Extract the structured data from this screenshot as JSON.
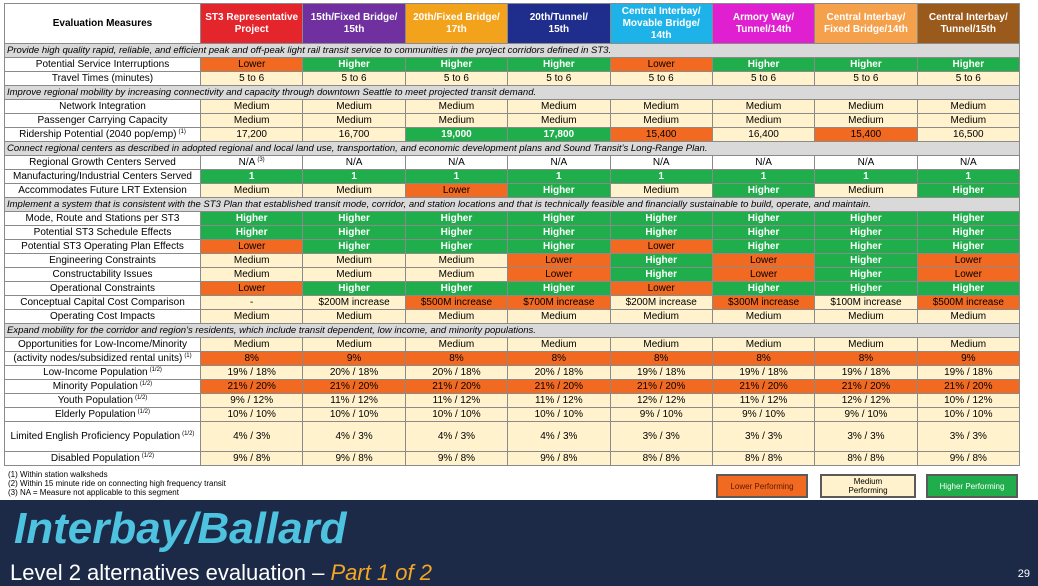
{
  "table": {
    "columns": [
      {
        "lines": [
          "Evaluation Measures"
        ],
        "color": "#ffffff"
      },
      {
        "lines": [
          "ST3 Representative",
          "Project"
        ],
        "color": "#e4262c"
      },
      {
        "lines": [
          "15th/Fixed Bridge/",
          "15th"
        ],
        "color": "#7030a0"
      },
      {
        "lines": [
          "20th/Fixed Bridge/",
          "17th"
        ],
        "color": "#f2a31b"
      },
      {
        "lines": [
          "20th/Tunnel/",
          "15th"
        ],
        "color": "#1f2d8c"
      },
      {
        "lines": [
          "Central Interbay/",
          "Movable Bridge/",
          "14th"
        ],
        "color": "#1eb3e8"
      },
      {
        "lines": [
          "Armory Way/",
          "Tunnel/14th"
        ],
        "color": "#e020d0"
      },
      {
        "lines": [
          "Central Interbay/",
          "Fixed Bridge/14th"
        ],
        "color": "#f5a04a"
      },
      {
        "lines": [
          "Central Interbay/",
          "Tunnel/15th"
        ],
        "color": "#9a5a1c"
      }
    ],
    "rows": [
      {
        "section": "Provide high quality rapid, reliable, and efficient peak and off-peak light rail transit service to communities in the project corridors defined in ST3."
      },
      {
        "label": "Potential Service Interruptions",
        "cells": [
          "Lower",
          "Higher",
          "Higher",
          "Higher",
          "Lower",
          "Higher",
          "Higher",
          "Higher"
        ],
        "levels": [
          0,
          2,
          2,
          2,
          0,
          2,
          2,
          2
        ]
      },
      {
        "label": "Travel Times (minutes)",
        "cells": [
          "5 to 6",
          "5 to 6",
          "5 to 6",
          "5 to 6",
          "5 to 6",
          "5 to 6",
          "5 to 6",
          "5 to 6"
        ],
        "levels": [
          1,
          1,
          1,
          1,
          1,
          1,
          1,
          1
        ]
      },
      {
        "section": "Improve regional mobility by increasing connectivity and capacity through downtown Seattle to meet projected transit demand."
      },
      {
        "label": "Network Integration",
        "cells": [
          "Medium",
          "Medium",
          "Medium",
          "Medium",
          "Medium",
          "Medium",
          "Medium",
          "Medium"
        ],
        "levels": [
          1,
          1,
          1,
          1,
          1,
          1,
          1,
          1
        ]
      },
      {
        "label": "Passenger Carrying Capacity",
        "cells": [
          "Medium",
          "Medium",
          "Medium",
          "Medium",
          "Medium",
          "Medium",
          "Medium",
          "Medium"
        ],
        "levels": [
          1,
          1,
          1,
          1,
          1,
          1,
          1,
          1
        ]
      },
      {
        "label": "Ridership Potential (2040 pop/emp)",
        "note": "(1)",
        "cells": [
          "17,200",
          "16,700",
          "19,000",
          "17,800",
          "15,400",
          "16,400",
          "15,400",
          "16,500"
        ],
        "levels": [
          1,
          1,
          2,
          2,
          0,
          1,
          0,
          1
        ]
      },
      {
        "section": "Connect regional centers as described in adopted regional and local land use, transportation, and economic development plans and Sound Transit’s Long-Range Plan."
      },
      {
        "label": "Regional Growth Centers Served",
        "cells": [
          {
            "text": "N/A",
            "note": "(3)"
          },
          "N/A",
          "N/A",
          "N/A",
          "N/A",
          "N/A",
          "N/A",
          "N/A"
        ],
        "levels": [
          null,
          null,
          null,
          null,
          null,
          null,
          null,
          null
        ]
      },
      {
        "label": "Manufacturing/Industrial Centers Served",
        "cells": [
          "1",
          "1",
          "1",
          "1",
          "1",
          "1",
          "1",
          "1"
        ],
        "levels": [
          2,
          2,
          2,
          2,
          2,
          2,
          2,
          2
        ]
      },
      {
        "label": "Accommodates Future LRT Extension",
        "cells": [
          "Medium",
          "Medium",
          "Lower",
          "Higher",
          "Medium",
          "Higher",
          "Medium",
          "Higher"
        ],
        "levels": [
          1,
          1,
          0,
          2,
          1,
          2,
          1,
          2
        ]
      },
      {
        "section": "Implement a system that is consistent with the ST3 Plan that established transit mode, corridor, and station locations and that is technically feasible and financially sustainable to build, operate, and maintain."
      },
      {
        "label": "Mode, Route and Stations per ST3",
        "cells": [
          "Higher",
          "Higher",
          "Higher",
          "Higher",
          "Higher",
          "Higher",
          "Higher",
          "Higher"
        ],
        "levels": [
          2,
          2,
          2,
          2,
          2,
          2,
          2,
          2
        ]
      },
      {
        "label": "Potential ST3 Schedule Effects",
        "cells": [
          "Higher",
          "Higher",
          "Higher",
          "Higher",
          "Higher",
          "Higher",
          "Higher",
          "Higher"
        ],
        "levels": [
          2,
          2,
          2,
          2,
          2,
          2,
          2,
          2
        ]
      },
      {
        "label": "Potential ST3 Operating Plan Effects",
        "cells": [
          "Lower",
          "Higher",
          "Higher",
          "Higher",
          "Lower",
          "Higher",
          "Higher",
          "Higher"
        ],
        "levels": [
          0,
          2,
          2,
          2,
          0,
          2,
          2,
          2
        ]
      },
      {
        "label": "Engineering Constraints",
        "cells": [
          "Medium",
          "Medium",
          "Medium",
          "Lower",
          "Higher",
          "Lower",
          "Higher",
          "Lower"
        ],
        "levels": [
          1,
          1,
          1,
          0,
          2,
          0,
          2,
          0
        ]
      },
      {
        "label": "Constructability Issues",
        "cells": [
          "Medium",
          "Medium",
          "Medium",
          "Lower",
          "Higher",
          "Lower",
          "Higher",
          "Lower"
        ],
        "levels": [
          1,
          1,
          1,
          0,
          2,
          0,
          2,
          0
        ]
      },
      {
        "label": "Operational Constraints",
        "cells": [
          "Lower",
          "Higher",
          "Higher",
          "Higher",
          "Lower",
          "Higher",
          "Higher",
          "Higher"
        ],
        "levels": [
          0,
          2,
          2,
          2,
          0,
          2,
          2,
          2
        ]
      },
      {
        "label": "Conceptual Capital Cost Comparison",
        "cells": [
          "-",
          "$200M increase",
          "$500M increase",
          "$700M increase",
          "$200M increase",
          "$300M increase",
          "$100M increase",
          "$500M increase"
        ],
        "levels": [
          1,
          1,
          0,
          0,
          1,
          0,
          1,
          0
        ]
      },
      {
        "label": "Operating Cost Impacts",
        "cells": [
          "Medium",
          "Medium",
          "Medium",
          "Medium",
          "Medium",
          "Medium",
          "Medium",
          "Medium"
        ],
        "levels": [
          1,
          1,
          1,
          1,
          1,
          1,
          1,
          1
        ]
      },
      {
        "section": "Expand mobility for the corridor and region’s residents, which include transit dependent, low income, and minority populations."
      },
      {
        "label": "Opportunities for Low-Income/Minority",
        "cells": [
          "Medium",
          "Medium",
          "Medium",
          "Medium",
          "Medium",
          "Medium",
          "Medium",
          "Medium"
        ],
        "levels": [
          1,
          1,
          1,
          1,
          1,
          1,
          1,
          1
        ]
      },
      {
        "label": "(activity nodes/subsidized rental units)",
        "note": "(1)",
        "cells": [
          "8%",
          "9%",
          "8%",
          "8%",
          "8%",
          "8%",
          "8%",
          "9%"
        ],
        "levels": [
          0,
          0,
          0,
          0,
          0,
          0,
          0,
          0
        ]
      },
      {
        "label": "Low-Income Population",
        "note": "(1/2)",
        "cells": [
          "19% / 18%",
          "20% / 18%",
          "20% / 18%",
          "20% / 18%",
          "19% / 18%",
          "19% / 18%",
          "19% / 18%",
          "19% / 18%"
        ],
        "levels": [
          1,
          1,
          1,
          1,
          1,
          1,
          1,
          1
        ]
      },
      {
        "label": "Minority Population",
        "note": "(1/2)",
        "cells": [
          "21% / 20%",
          "21% / 20%",
          "21% / 20%",
          "21% / 20%",
          "21% / 20%",
          "21% / 20%",
          "21% / 20%",
          "21% / 20%"
        ],
        "levels": [
          0,
          0,
          0,
          0,
          0,
          0,
          0,
          0
        ]
      },
      {
        "label": "Youth Population",
        "note": "(1/2)",
        "cells": [
          "9% / 12%",
          "11% / 12%",
          "11% / 12%",
          "11% / 12%",
          "12% / 12%",
          "11% / 12%",
          "12% / 12%",
          "10% / 12%"
        ],
        "levels": [
          1,
          1,
          1,
          1,
          1,
          1,
          1,
          1
        ]
      },
      {
        "label": "Elderly Population",
        "note": "(1/2)",
        "cells": [
          "10% / 10%",
          "10% / 10%",
          "10% / 10%",
          "10% / 10%",
          "9% / 10%",
          "9% / 10%",
          "9% / 10%",
          "10% / 10%"
        ],
        "levels": [
          1,
          1,
          1,
          1,
          1,
          1,
          1,
          1
        ]
      },
      {
        "label": "Limited English Proficiency Population",
        "note": "(1/2)",
        "cells": [
          "4% / 3%",
          "4% / 3%",
          "4% / 3%",
          "4% / 3%",
          "3% / 3%",
          "3% / 3%",
          "3% / 3%",
          "3% / 3%"
        ],
        "levels": [
          1,
          1,
          1,
          1,
          1,
          1,
          1,
          1
        ]
      },
      {
        "label": "Disabled Population",
        "note": "(1/2)",
        "cells": [
          "9% / 8%",
          "9% / 8%",
          "9% / 8%",
          "9% / 8%",
          "8% / 8%",
          "8% / 8%",
          "8% / 8%",
          "9% / 8%"
        ],
        "levels": [
          1,
          1,
          1,
          1,
          1,
          1,
          1,
          1
        ]
      }
    ]
  },
  "footnotes": [
    "(1) Within station walksheds",
    "(2) Within 15 minute ride on connecting high frequency transit",
    "(3) NA = Measure not applicable to this segment"
  ],
  "legend": [
    {
      "label": "Lower Performing",
      "color": "#f26a22"
    },
    {
      "label": "Medium Performing",
      "color": "#fff2cc"
    },
    {
      "label": "Higher Performing",
      "color": "#1fae4b"
    }
  ],
  "footer": {
    "title": "Interbay/Ballard",
    "subtitle": "Level 2 alternatives evaluation",
    "dash": "–",
    "part": "Part 1 of 2",
    "page": "29"
  }
}
